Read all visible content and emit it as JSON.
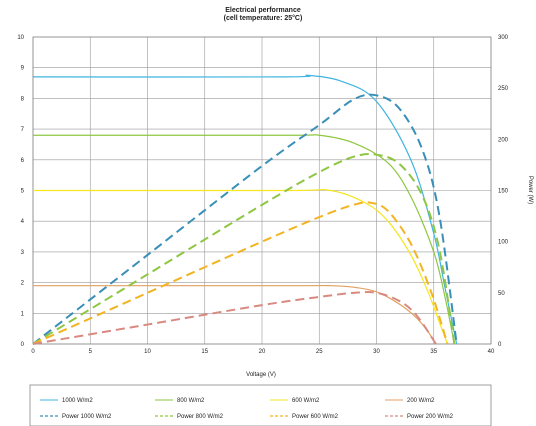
{
  "chart_data": {
    "type": "line",
    "title": "Electrical performance",
    "subtitle": "(cell temperature: 25°C)",
    "xlabel": "Voltage (V)",
    "ylabel_left": "",
    "ylabel_right": "Power (W)",
    "xlim": [
      0,
      40
    ],
    "ylim_left": [
      0,
      10
    ],
    "ylim_right": [
      0,
      300
    ],
    "x_ticks": [
      "0",
      "5",
      "10",
      "15",
      "20",
      "25",
      "30",
      "35",
      "40"
    ],
    "y_left_ticks": [
      "0",
      "1",
      "2",
      "3",
      "4",
      "5",
      "6",
      "7",
      "8",
      "9",
      "10"
    ],
    "y_right_ticks": [
      "0",
      "50",
      "100",
      "150",
      "200",
      "250",
      "300"
    ],
    "grid": true,
    "legend_position": "bottom",
    "series": [
      {
        "name": "1000 W/m2",
        "axis": "left",
        "style": "solid",
        "color": "#3fb4e0",
        "x": [
          0,
          22,
          24,
          27,
          30,
          33,
          35,
          36,
          37
        ],
        "y": [
          8.7,
          8.7,
          8.75,
          8.55,
          7.9,
          6.0,
          3.6,
          1.8,
          0
        ]
      },
      {
        "name": "800 W/m2",
        "axis": "left",
        "style": "solid",
        "color": "#8ec641",
        "x": [
          0,
          22,
          25,
          28,
          31,
          33,
          35,
          36,
          36.8
        ],
        "y": [
          6.8,
          6.8,
          6.8,
          6.55,
          5.9,
          4.8,
          3.0,
          1.5,
          0
        ]
      },
      {
        "name": "600 W/m2",
        "axis": "left",
        "style": "solid",
        "color": "#f5e61e",
        "x": [
          0,
          22,
          26,
          29,
          31,
          33,
          34.5,
          35.5,
          36.2
        ],
        "y": [
          5.0,
          5.0,
          5.0,
          4.6,
          4.0,
          2.9,
          1.7,
          0.7,
          0
        ]
      },
      {
        "name": "200 W/m2",
        "axis": "left",
        "style": "solid",
        "color": "#e1a060",
        "x": [
          0,
          22,
          26,
          28,
          30,
          32,
          33.5,
          34.5,
          35.2
        ],
        "y": [
          1.9,
          1.9,
          1.9,
          1.85,
          1.7,
          1.3,
          0.85,
          0.4,
          0
        ]
      },
      {
        "name": "Power 1000 W/m2",
        "axis": "right",
        "style": "dashed",
        "color": "#3a8fb8",
        "x": [
          0,
          10,
          20,
          25,
          28,
          30,
          32,
          34,
          35.5,
          37
        ],
        "y": [
          0,
          87,
          174,
          214,
          239,
          243,
          230,
          190,
          125,
          0
        ]
      },
      {
        "name": "Power 800 W/m2",
        "axis": "right",
        "style": "dashed",
        "color": "#8ec641",
        "x": [
          0,
          10,
          20,
          25,
          28,
          30,
          32,
          34,
          35.5,
          36.8
        ],
        "y": [
          0,
          68,
          136,
          168,
          183,
          185,
          176,
          145,
          92,
          0
        ]
      },
      {
        "name": "Power 600 W/m2",
        "axis": "right",
        "style": "dashed",
        "color": "#f2b423",
        "x": [
          0,
          10,
          20,
          25,
          28,
          29.5,
          31,
          33,
          34.8,
          36.2
        ],
        "y": [
          0,
          50,
          100,
          124,
          136,
          138,
          130,
          98,
          50,
          0
        ]
      },
      {
        "name": "Power 200 W/m2",
        "axis": "right",
        "style": "dashed",
        "color": "#d88a80",
        "x": [
          0,
          10,
          20,
          25,
          28,
          30,
          32,
          33.5,
          35.2
        ],
        "y": [
          0,
          19,
          38,
          46,
          50,
          50,
          42,
          28,
          0
        ]
      }
    ]
  }
}
